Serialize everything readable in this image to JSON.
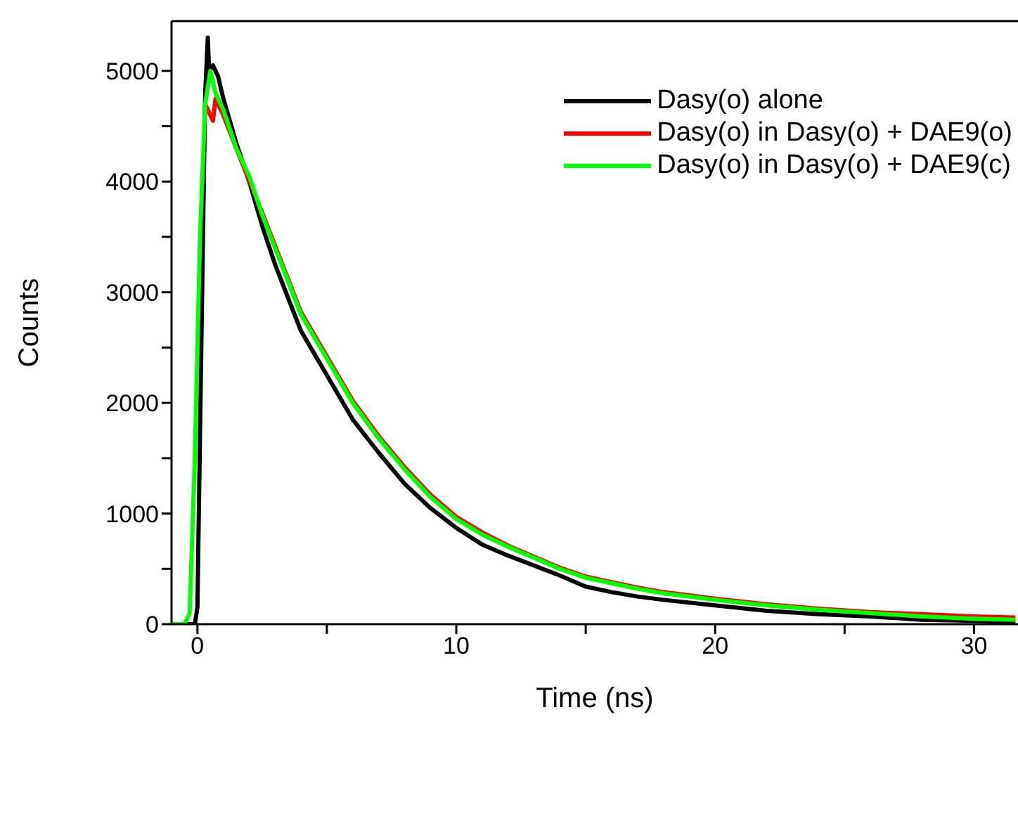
{
  "chart_data": {
    "type": "line",
    "xlabel": "Time (ns)",
    "ylabel": "Counts",
    "xlim": [
      -1,
      31.7
    ],
    "xticks": [
      0,
      {
        "value": 5,
        "label": null
      },
      10,
      {
        "value": 15,
        "label": null
      },
      20,
      {
        "value": 25,
        "label": null
      },
      30
    ],
    "ylim": [
      0,
      5450
    ],
    "yticks": [
      0,
      {
        "value": 500,
        "label": null
      },
      1000,
      {
        "value": 1500,
        "label": null
      },
      2000,
      {
        "value": 2500,
        "label": null
      },
      3000,
      {
        "value": 3500,
        "label": null
      },
      4000,
      {
        "value": 4500,
        "label": null
      },
      5000
    ],
    "grid": false,
    "legend": "top right",
    "marker": "none",
    "line_style": "solid",
    "series": [
      {
        "name": "Dasy(o) alone",
        "color": "#000000",
        "x": [
          -1,
          -0.1,
          0,
          0.15,
          0.3,
          0.4,
          0.45,
          0.6,
          0.8,
          1,
          1.5,
          2,
          2.5,
          3,
          3.5,
          4,
          5,
          6,
          7,
          8,
          9,
          10,
          11,
          12,
          13,
          14,
          15,
          16,
          17,
          18,
          20,
          22,
          24,
          26,
          28,
          30,
          31.6
        ],
        "values": [
          0,
          0,
          150,
          2500,
          4800,
          5300,
          5000,
          5050,
          4950,
          4750,
          4350,
          4000,
          3600,
          3250,
          2950,
          2650,
          2250,
          1850,
          1550,
          1270,
          1050,
          870,
          720,
          620,
          530,
          440,
          340,
          290,
          250,
          220,
          170,
          120,
          90,
          70,
          40,
          30,
          20
        ]
      },
      {
        "name": "Dasy(o) in Dasy(o) + DAE9(o)",
        "color": "#ff0000",
        "x": [
          0.3,
          0.6,
          0.7,
          1,
          1.5,
          2.5,
          3,
          3.5,
          4,
          5,
          6,
          7,
          8,
          9,
          10,
          11,
          12,
          13,
          14,
          15,
          16,
          17,
          18,
          20,
          22,
          24,
          26,
          28,
          30,
          31.6
        ],
        "values": [
          4700,
          4550,
          4750,
          4600,
          4300,
          3720,
          3420,
          3120,
          2820,
          2420,
          2020,
          1700,
          1420,
          1170,
          970,
          830,
          710,
          610,
          510,
          430,
          380,
          330,
          290,
          230,
          180,
          140,
          110,
          90,
          70,
          60
        ]
      },
      {
        "name": "Dasy(o) in Dasy(o) + DAE9(c)",
        "color": "#00ff00",
        "x": [
          -1,
          -0.5,
          -0.3,
          -0.1,
          0.1,
          0.3,
          0.5,
          0.7,
          1,
          1.5,
          2,
          2.5,
          3,
          3.5,
          4,
          5,
          6,
          7,
          8,
          9,
          10,
          11,
          12,
          13,
          14,
          15,
          16,
          17,
          18,
          20,
          22,
          24,
          26,
          28,
          30,
          31.6
        ],
        "values": [
          0,
          0,
          100,
          1500,
          3500,
          4700,
          5000,
          4800,
          4650,
          4300,
          4050,
          3700,
          3400,
          3100,
          2800,
          2400,
          2000,
          1680,
          1400,
          1150,
          950,
          810,
          700,
          600,
          500,
          420,
          370,
          320,
          280,
          220,
          170,
          130,
          100,
          70,
          50,
          40
        ]
      }
    ]
  }
}
